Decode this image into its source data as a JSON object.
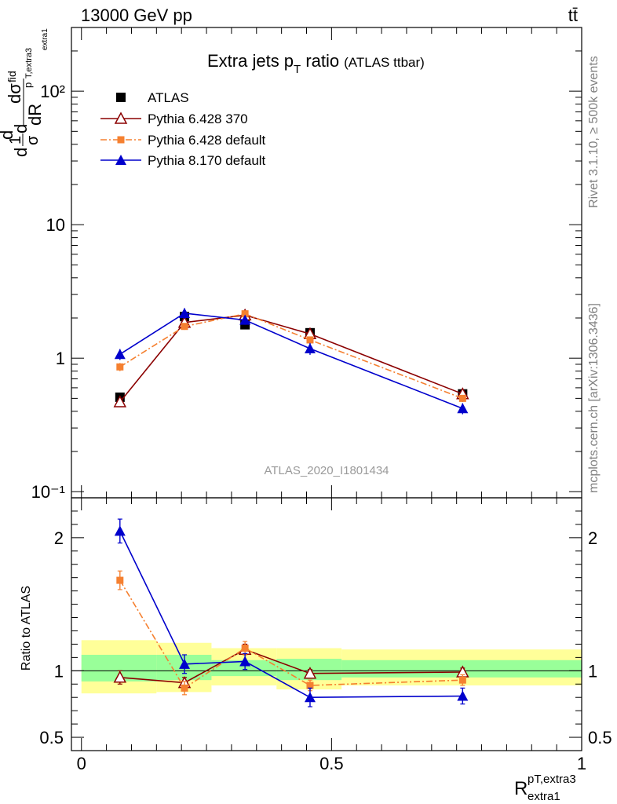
{
  "header": {
    "energy_label": "13000 GeV pp",
    "process_label": "tt̄"
  },
  "side_labels": {
    "rivet": "Rivet 3.1.10, ≥ 500k events",
    "mcplots": "mcplots.cern.ch [arXiv:1306.3436]"
  },
  "watermark": "ATLAS_2020_I1801434",
  "colors": {
    "atlas": "#000000",
    "pythia6_370": "#8b0000",
    "pythia6_default": "#f58030",
    "pythia8": "#0000cc",
    "band_inner": "#99ff99",
    "band_outer": "#ffff99"
  },
  "chart_data": [
    {
      "type": "scatter",
      "title_main": "Extra jets p",
      "title_sub": "T",
      "title_tail": " ratio",
      "title_extra": "(ATLAS ttbar)",
      "ylabel": "d¹σ/dσ d dR",
      "ylabel_parts": {
        "frac_num": "1",
        "frac_den": "σ",
        "d_prefix": "d",
        "d_num": "dσ",
        "sup_fid": "fid",
        "d_den": "dR",
        "sub_p": "p",
        "sub_t": "T,extra3",
        "sub_extra": "extra1"
      },
      "yscale": "log",
      "ylim": [
        0.09,
        300
      ],
      "y_ticks": [
        {
          "value": 0.1,
          "label": "10⁻¹"
        },
        {
          "value": 1,
          "label": "1"
        },
        {
          "value": 10,
          "label": "10"
        },
        {
          "value": 100,
          "label": "10²"
        }
      ],
      "legend_placement": "top-left",
      "series": [
        {
          "name": "ATLAS",
          "marker": "square",
          "x": [
            0.077,
            0.206,
            0.327,
            0.457,
            0.762
          ],
          "y": [
            0.51,
            2.05,
            1.78,
            1.55,
            0.54
          ]
        },
        {
          "name": "Pythia 6.428 370",
          "marker": "triangle-open",
          "x": [
            0.077,
            0.206,
            0.327,
            0.457,
            0.762
          ],
          "y": [
            0.47,
            1.85,
            2.1,
            1.52,
            0.54
          ]
        },
        {
          "name": "Pythia 6.428 default",
          "marker": "square-small",
          "x": [
            0.077,
            0.206,
            0.327,
            0.457,
            0.762
          ],
          "y": [
            0.86,
            1.73,
            2.15,
            1.37,
            0.5
          ]
        },
        {
          "name": "Pythia 8.170 default",
          "marker": "triangle",
          "x": [
            0.077,
            0.206,
            0.327,
            0.457,
            0.762
          ],
          "y": [
            1.07,
            2.17,
            1.93,
            1.18,
            0.42
          ]
        }
      ]
    },
    {
      "type": "scatter",
      "ylabel": "Ratio to ATLAS",
      "xlabel": "R",
      "xlabel_sup": "pT,extra3",
      "xlabel_sub": "extra1",
      "xlim": [
        -0.02,
        1.0
      ],
      "ylim": [
        0.4,
        2.3
      ],
      "x_ticks": [
        {
          "value": 0,
          "label": "0"
        },
        {
          "value": 0.5,
          "label": "0.5"
        },
        {
          "value": 1,
          "label": "1"
        }
      ],
      "y_ticks": [
        {
          "value": 0.5,
          "label": "0.5"
        },
        {
          "value": 1,
          "label": "1"
        },
        {
          "value": 2,
          "label": "2"
        }
      ],
      "bands": [
        {
          "x0": 0.0,
          "x1": 0.15,
          "inner": [
            0.92,
            1.12
          ],
          "outer": [
            0.83,
            1.23
          ]
        },
        {
          "x0": 0.15,
          "x1": 0.26,
          "inner": [
            0.93,
            1.12
          ],
          "outer": [
            0.84,
            1.21
          ]
        },
        {
          "x0": 0.26,
          "x1": 0.39,
          "inner": [
            0.96,
            1.08
          ],
          "outer": [
            0.89,
            1.17
          ]
        },
        {
          "x0": 0.39,
          "x1": 0.52,
          "inner": [
            0.93,
            1.09
          ],
          "outer": [
            0.86,
            1.17
          ]
        },
        {
          "x0": 0.52,
          "x1": 1.0,
          "inner": [
            0.95,
            1.08
          ],
          "outer": [
            0.89,
            1.16
          ]
        }
      ],
      "series": [
        {
          "name": "Pythia 6.428 370",
          "x": [
            0.077,
            0.206,
            0.327,
            0.457,
            0.762
          ],
          "y": [
            0.95,
            0.91,
            1.16,
            0.98,
            0.99
          ]
        },
        {
          "name": "Pythia 6.428 default",
          "x": [
            0.077,
            0.206,
            0.327,
            0.457,
            0.762
          ],
          "y": [
            1.68,
            0.87,
            1.17,
            0.89,
            0.93
          ]
        },
        {
          "name": "Pythia 8.170 default",
          "x": [
            0.077,
            0.206,
            0.327,
            0.457,
            0.762
          ],
          "y": [
            2.05,
            1.05,
            1.07,
            0.8,
            0.81
          ]
        }
      ]
    }
  ]
}
